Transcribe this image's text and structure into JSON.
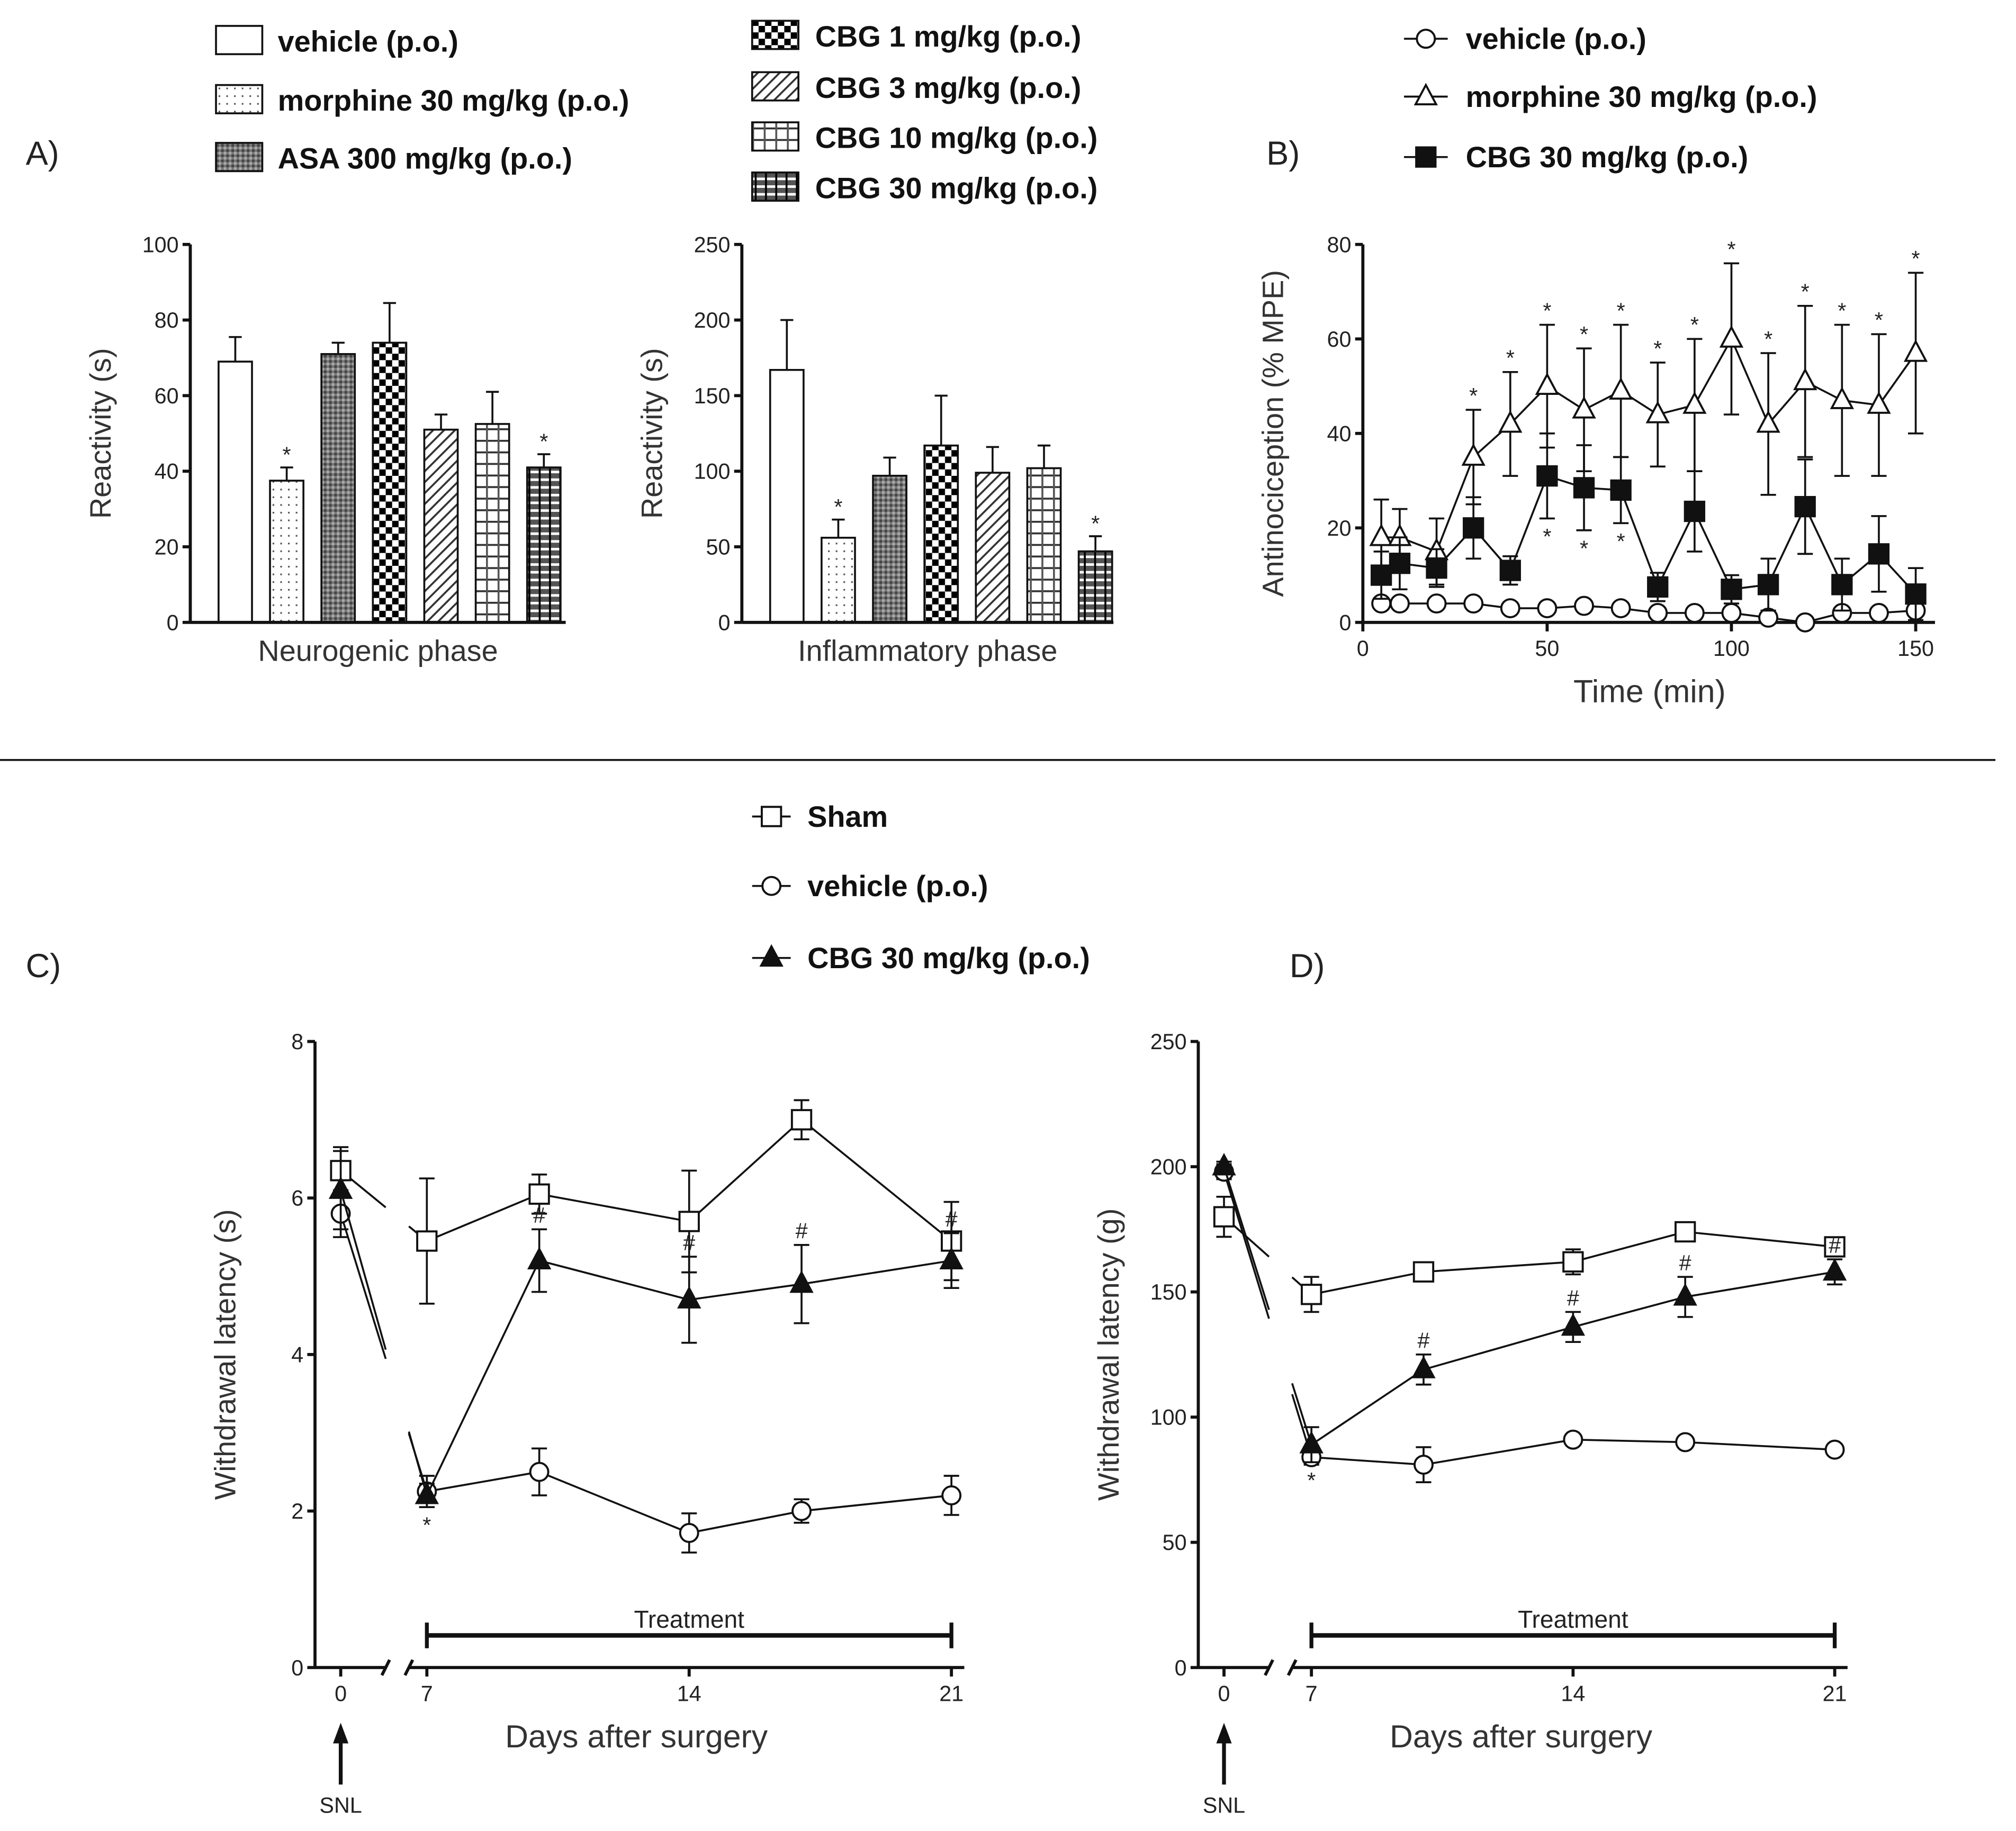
{
  "panel_labels": {
    "a": "A)",
    "b": "B)",
    "c": "C)",
    "d": "D)"
  },
  "chart_data": [
    {
      "type": "bar",
      "panel": "A",
      "title": "Neurogenic phase",
      "xlabel": "Neurogenic phase",
      "ylabel": "Reactivity (s)",
      "ylim": [
        0,
        100
      ],
      "yticks": [
        0,
        20,
        40,
        60,
        80,
        100
      ],
      "categories": [
        "vehicle (p.o.)",
        "morphine 30 mg/kg (p.o.)",
        "ASA 300 mg/kg (p.o.)",
        "CBG 1 mg/kg (p.o.)",
        "CBG 3 mg/kg (p.o.)",
        "CBG 10 mg/kg (p.o.)",
        "CBG 30 mg/kg (p.o.)"
      ],
      "values": [
        69,
        37.5,
        71,
        74,
        51,
        52.5,
        41
      ],
      "errors": [
        6.5,
        3.5,
        3,
        10.5,
        4,
        8.5,
        3.5
      ],
      "significance": [
        "",
        "*",
        "",
        "",
        "",
        "",
        "*"
      ]
    },
    {
      "type": "bar",
      "panel": "A",
      "title": "Inflammatory phase",
      "xlabel": "Inflammatory phase",
      "ylabel": "Reactivity (s)",
      "ylim": [
        0,
        250
      ],
      "yticks": [
        0,
        50,
        100,
        150,
        200,
        250
      ],
      "categories": [
        "vehicle (p.o.)",
        "morphine 30 mg/kg (p.o.)",
        "ASA 300 mg/kg (p.o.)",
        "CBG 1 mg/kg (p.o.)",
        "CBG 3 mg/kg (p.o.)",
        "CBG 10 mg/kg (p.o.)",
        "CBG 30 mg/kg (p.o.)"
      ],
      "values": [
        167,
        56,
        97,
        117,
        99,
        102,
        47
      ],
      "errors": [
        33,
        12,
        12,
        33,
        17,
        15,
        10
      ],
      "significance": [
        "",
        "*",
        "",
        "",
        "",
        "",
        "*"
      ],
      "legend": [
        "vehicle  (p.o.)",
        "morphine 30 mg/kg  (p.o.)",
        "ASA 300 mg/kg  (p.o.)",
        "CBG 1 mg/kg  (p.o.)",
        "CBG 3 mg/kg (p.o.)",
        "CBG 10 mg/kg  (p.o.)",
        "CBG 30 mg/kg (p.o.)"
      ]
    },
    {
      "type": "line",
      "panel": "B",
      "xlabel": "Time (min)",
      "ylabel": "Antinociception (% MPE)",
      "xlim": [
        0,
        155
      ],
      "ylim": [
        0,
        80
      ],
      "xticks": [
        0,
        50,
        100,
        150
      ],
      "yticks": [
        0,
        20,
        40,
        60,
        80
      ],
      "x": [
        5,
        10,
        20,
        30,
        40,
        50,
        60,
        70,
        80,
        90,
        100,
        110,
        120,
        130,
        140,
        150
      ],
      "legend_placement": "top",
      "series": [
        {
          "name": "vehicle  (p.o.)",
          "marker": "circle-open",
          "values": [
            4,
            4,
            4,
            4,
            3,
            3,
            3.5,
            3,
            2,
            2,
            2,
            1,
            0,
            2,
            2,
            2.5
          ],
          "errors": [
            1,
            1,
            1,
            1,
            0.5,
            0.5,
            0.5,
            0.5,
            0.5,
            0.5,
            0.5,
            0.5,
            0.5,
            1,
            0.5,
            0.5
          ],
          "significance": [
            "",
            "",
            "",
            "",
            "",
            "",
            "",
            "",
            "",
            "",
            "",
            "",
            "",
            "",
            "",
            ""
          ]
        },
        {
          "name": "morphine 30 mg/kg (p.o.)",
          "marker": "triangle-open",
          "values": [
            18,
            18,
            15,
            35,
            42,
            50,
            45,
            49,
            44,
            46,
            60,
            42,
            51,
            47,
            46,
            57
          ],
          "errors": [
            8,
            6,
            7,
            10,
            11,
            13,
            13,
            14,
            11,
            14,
            16,
            15,
            16,
            16,
            15,
            17
          ],
          "significance": [
            "",
            "",
            "",
            "*",
            "*",
            "*",
            "*",
            "*",
            "*",
            "*",
            "*",
            "*",
            "*",
            "*",
            "*",
            "*"
          ]
        },
        {
          "name": "CBG 30 mg/kg (p.o.)",
          "marker": "square-filled",
          "values": [
            10,
            12.5,
            11.5,
            20,
            11,
            31,
            28.5,
            28,
            7.5,
            23.5,
            7,
            8,
            24.5,
            8,
            14.5,
            6
          ],
          "errors": [
            5,
            5.5,
            4,
            6.5,
            3,
            9,
            9,
            7,
            3,
            8.5,
            3,
            5.5,
            10,
            5.5,
            8,
            5.5
          ],
          "significance": [
            "",
            "",
            "",
            "",
            "",
            "*",
            "*",
            "*",
            "",
            "",
            "",
            "",
            "",
            "",
            "",
            ""
          ]
        }
      ]
    },
    {
      "type": "line",
      "panel": "C",
      "xlabel": "Days after surgery",
      "ylabel": "Withdrawal latency (s)",
      "ylim": [
        0,
        8
      ],
      "yticks": [
        0,
        2,
        4,
        6,
        8
      ],
      "xticks": [
        0,
        7,
        14,
        21
      ],
      "x_axis_break": [
        0,
        7
      ],
      "x": [
        0,
        7,
        10,
        14,
        17,
        21
      ],
      "annotation_event": "SNL",
      "treatment_label": "Treatment",
      "treatment_range": [
        7,
        21
      ],
      "series": [
        {
          "name": "Sham",
          "marker": "square-open",
          "values": [
            6.35,
            5.45,
            6.05,
            5.7,
            7.0,
            5.45
          ],
          "errors": [
            0.3,
            0.8,
            0.25,
            0.65,
            0.25,
            0.5
          ],
          "significance": [
            "",
            "",
            "",
            "",
            "",
            ""
          ]
        },
        {
          "name": "vehicle (p.o.)",
          "marker": "circle-open",
          "values": [
            5.8,
            2.25,
            2.5,
            1.72,
            2.0,
            2.2
          ],
          "errors": [
            0.3,
            0.2,
            0.3,
            0.25,
            0.15,
            0.25
          ],
          "significance": [
            "",
            "",
            "",
            "",
            "",
            ""
          ]
        },
        {
          "name": "CBG 30 mg/kg (p.o.)",
          "marker": "triangle-filled",
          "values": [
            6.1,
            2.2,
            5.2,
            4.7,
            4.9,
            5.2
          ],
          "errors": [
            0.5,
            0.15,
            0.4,
            0.55,
            0.5,
            0.35
          ],
          "significance": [
            "",
            "*",
            "#",
            "#",
            "#",
            "#"
          ]
        }
      ]
    },
    {
      "type": "line",
      "panel": "D",
      "xlabel": "Days after surgery",
      "ylabel": "Withdrawal latency (g)",
      "ylim": [
        0,
        250
      ],
      "yticks": [
        0,
        50,
        100,
        150,
        200,
        250
      ],
      "xticks": [
        0,
        7,
        14,
        21
      ],
      "x_axis_break": [
        0,
        7
      ],
      "x": [
        0,
        7,
        10,
        14,
        17,
        21
      ],
      "annotation_event": "SNL",
      "treatment_label": "Treatment",
      "treatment_range": [
        7,
        21
      ],
      "series": [
        {
          "name": "Sham",
          "marker": "square-open",
          "values": [
            180,
            149,
            158,
            162,
            174,
            168
          ],
          "errors": [
            8,
            7,
            3,
            5,
            3,
            3
          ],
          "significance": [
            "",
            "",
            "",
            "",
            "",
            ""
          ]
        },
        {
          "name": "vehicle (p.o.)",
          "marker": "circle-open",
          "values": [
            198,
            84,
            81,
            91,
            90,
            87
          ],
          "errors": [
            3,
            3,
            7,
            2,
            2,
            2
          ],
          "significance": [
            "",
            "",
            "",
            "",
            "",
            ""
          ]
        },
        {
          "name": "CBG 30 mg/kg (p.o.)",
          "marker": "triangle-filled",
          "values": [
            200,
            89,
            119,
            136,
            148,
            158
          ],
          "errors": [
            2,
            7,
            6,
            6,
            8,
            5
          ],
          "significance": [
            "",
            "*",
            "#",
            "#",
            "#",
            "#"
          ]
        }
      ]
    }
  ]
}
